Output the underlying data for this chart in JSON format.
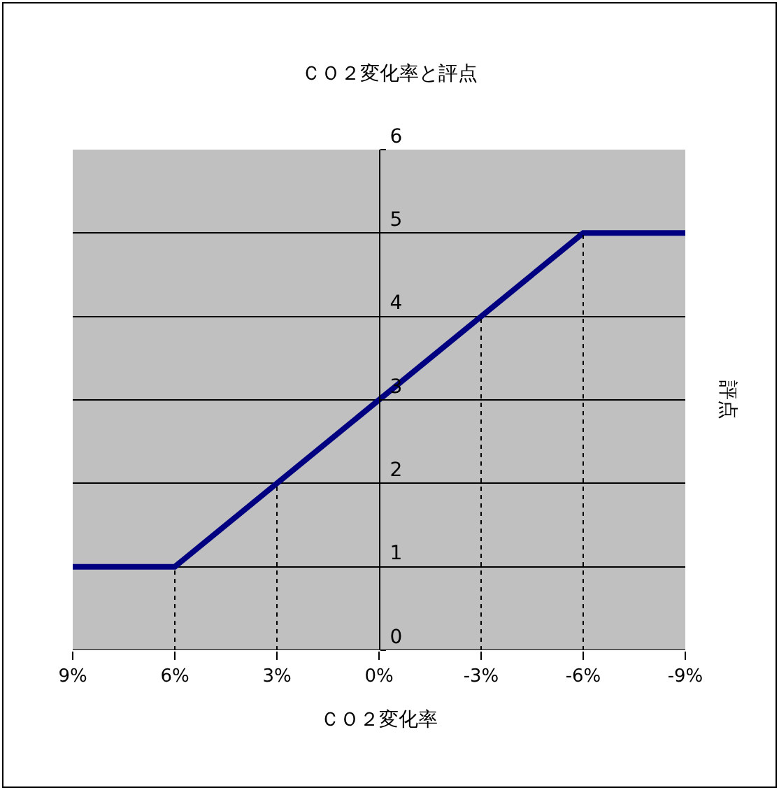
{
  "chart_data": {
    "type": "line",
    "title": "ＣＯ２変化率と評点",
    "xlabel": "ＣＯ２変化率",
    "ylabel": "評点",
    "xlim": [
      9,
      -9
    ],
    "xticks": [
      {
        "value": 9,
        "label": "9%"
      },
      {
        "value": 6,
        "label": "6%"
      },
      {
        "value": 3,
        "label": "3%"
      },
      {
        "value": 0,
        "label": "0%"
      },
      {
        "value": -3,
        "label": "-3%"
      },
      {
        "value": -6,
        "label": "-6%"
      },
      {
        "value": -9,
        "label": "-9%"
      }
    ],
    "ylim": [
      0,
      6
    ],
    "yticks": [
      0,
      1,
      2,
      3,
      4,
      5,
      6
    ],
    "grid": "y",
    "marker": "none",
    "series": [
      {
        "color": "#000080",
        "x": [
          9,
          6,
          -6,
          -9
        ],
        "values": [
          1,
          1,
          5,
          5
        ],
        "line_style": "solid"
      },
      {
        "color": "#000000",
        "x": [
          6,
          6
        ],
        "values": [
          0,
          1
        ],
        "line_style": "dotted"
      },
      {
        "color": "#000000",
        "x": [
          3,
          3
        ],
        "values": [
          0,
          2
        ],
        "line_style": "dotted"
      },
      {
        "color": "#000000",
        "x": [
          -3,
          -3
        ],
        "values": [
          0,
          4
        ],
        "line_style": "dotted"
      },
      {
        "color": "#000000",
        "x": [
          -6,
          -6
        ],
        "values": [
          0,
          5
        ],
        "line_style": "dotted"
      }
    ]
  }
}
